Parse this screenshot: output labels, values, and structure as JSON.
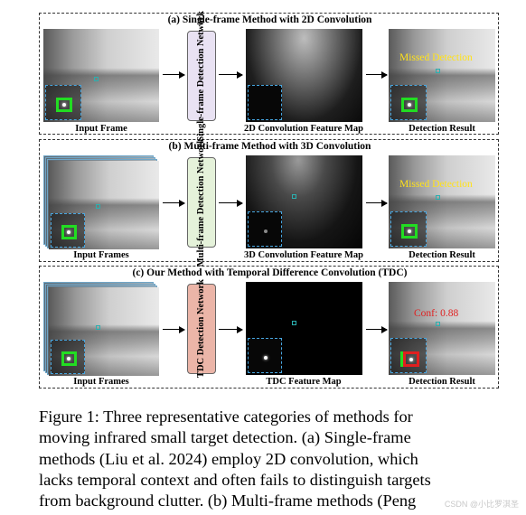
{
  "panels": [
    {
      "title": "(a) Single-frame Method with 2D Convolution",
      "input_caption": "Input Frame",
      "network_label": "Single-frame Detection Network",
      "feature_caption": "2D Convolution Feature Map",
      "result_caption": "Detection Result",
      "result_annotation": "Missed Detection"
    },
    {
      "title": "(b) Multi-frame Method with 3D Convolution",
      "input_caption": "Input Frames",
      "network_label": "Multi-frame Detection Network",
      "feature_caption": "3D Convolution Feature Map",
      "result_caption": "Detection Result",
      "result_annotation": "Missed Detection"
    },
    {
      "title": "(c) Our Method with Temporal Difference Convolution (TDC)",
      "input_caption": "Input Frames",
      "network_label": "TDC Detection Network",
      "feature_caption": "TDC Feature Map",
      "result_caption": "Detection Result",
      "result_annotation": "Conf: 0.88"
    }
  ],
  "colors": {
    "network_a": "#e9e2f3",
    "network_b": "#e5f2da",
    "network_c": "#ebb5a8",
    "target_box": "#22dd22",
    "detection_box": "#e02020",
    "missed_text": "#ffe21a",
    "inset_border": "#47a6e0"
  },
  "caption_lines": [
    "Figure 1: Three representative categories of methods for",
    "moving infrared small target detection. (a) Single-frame",
    "methods (Liu et al. 2024) employ 2D convolution, which",
    "lacks temporal context and often fails to distinguish targets",
    "from background clutter. (b) Multi-frame methods (Peng"
  ],
  "watermark": "CSDN @小比罗淇圣"
}
